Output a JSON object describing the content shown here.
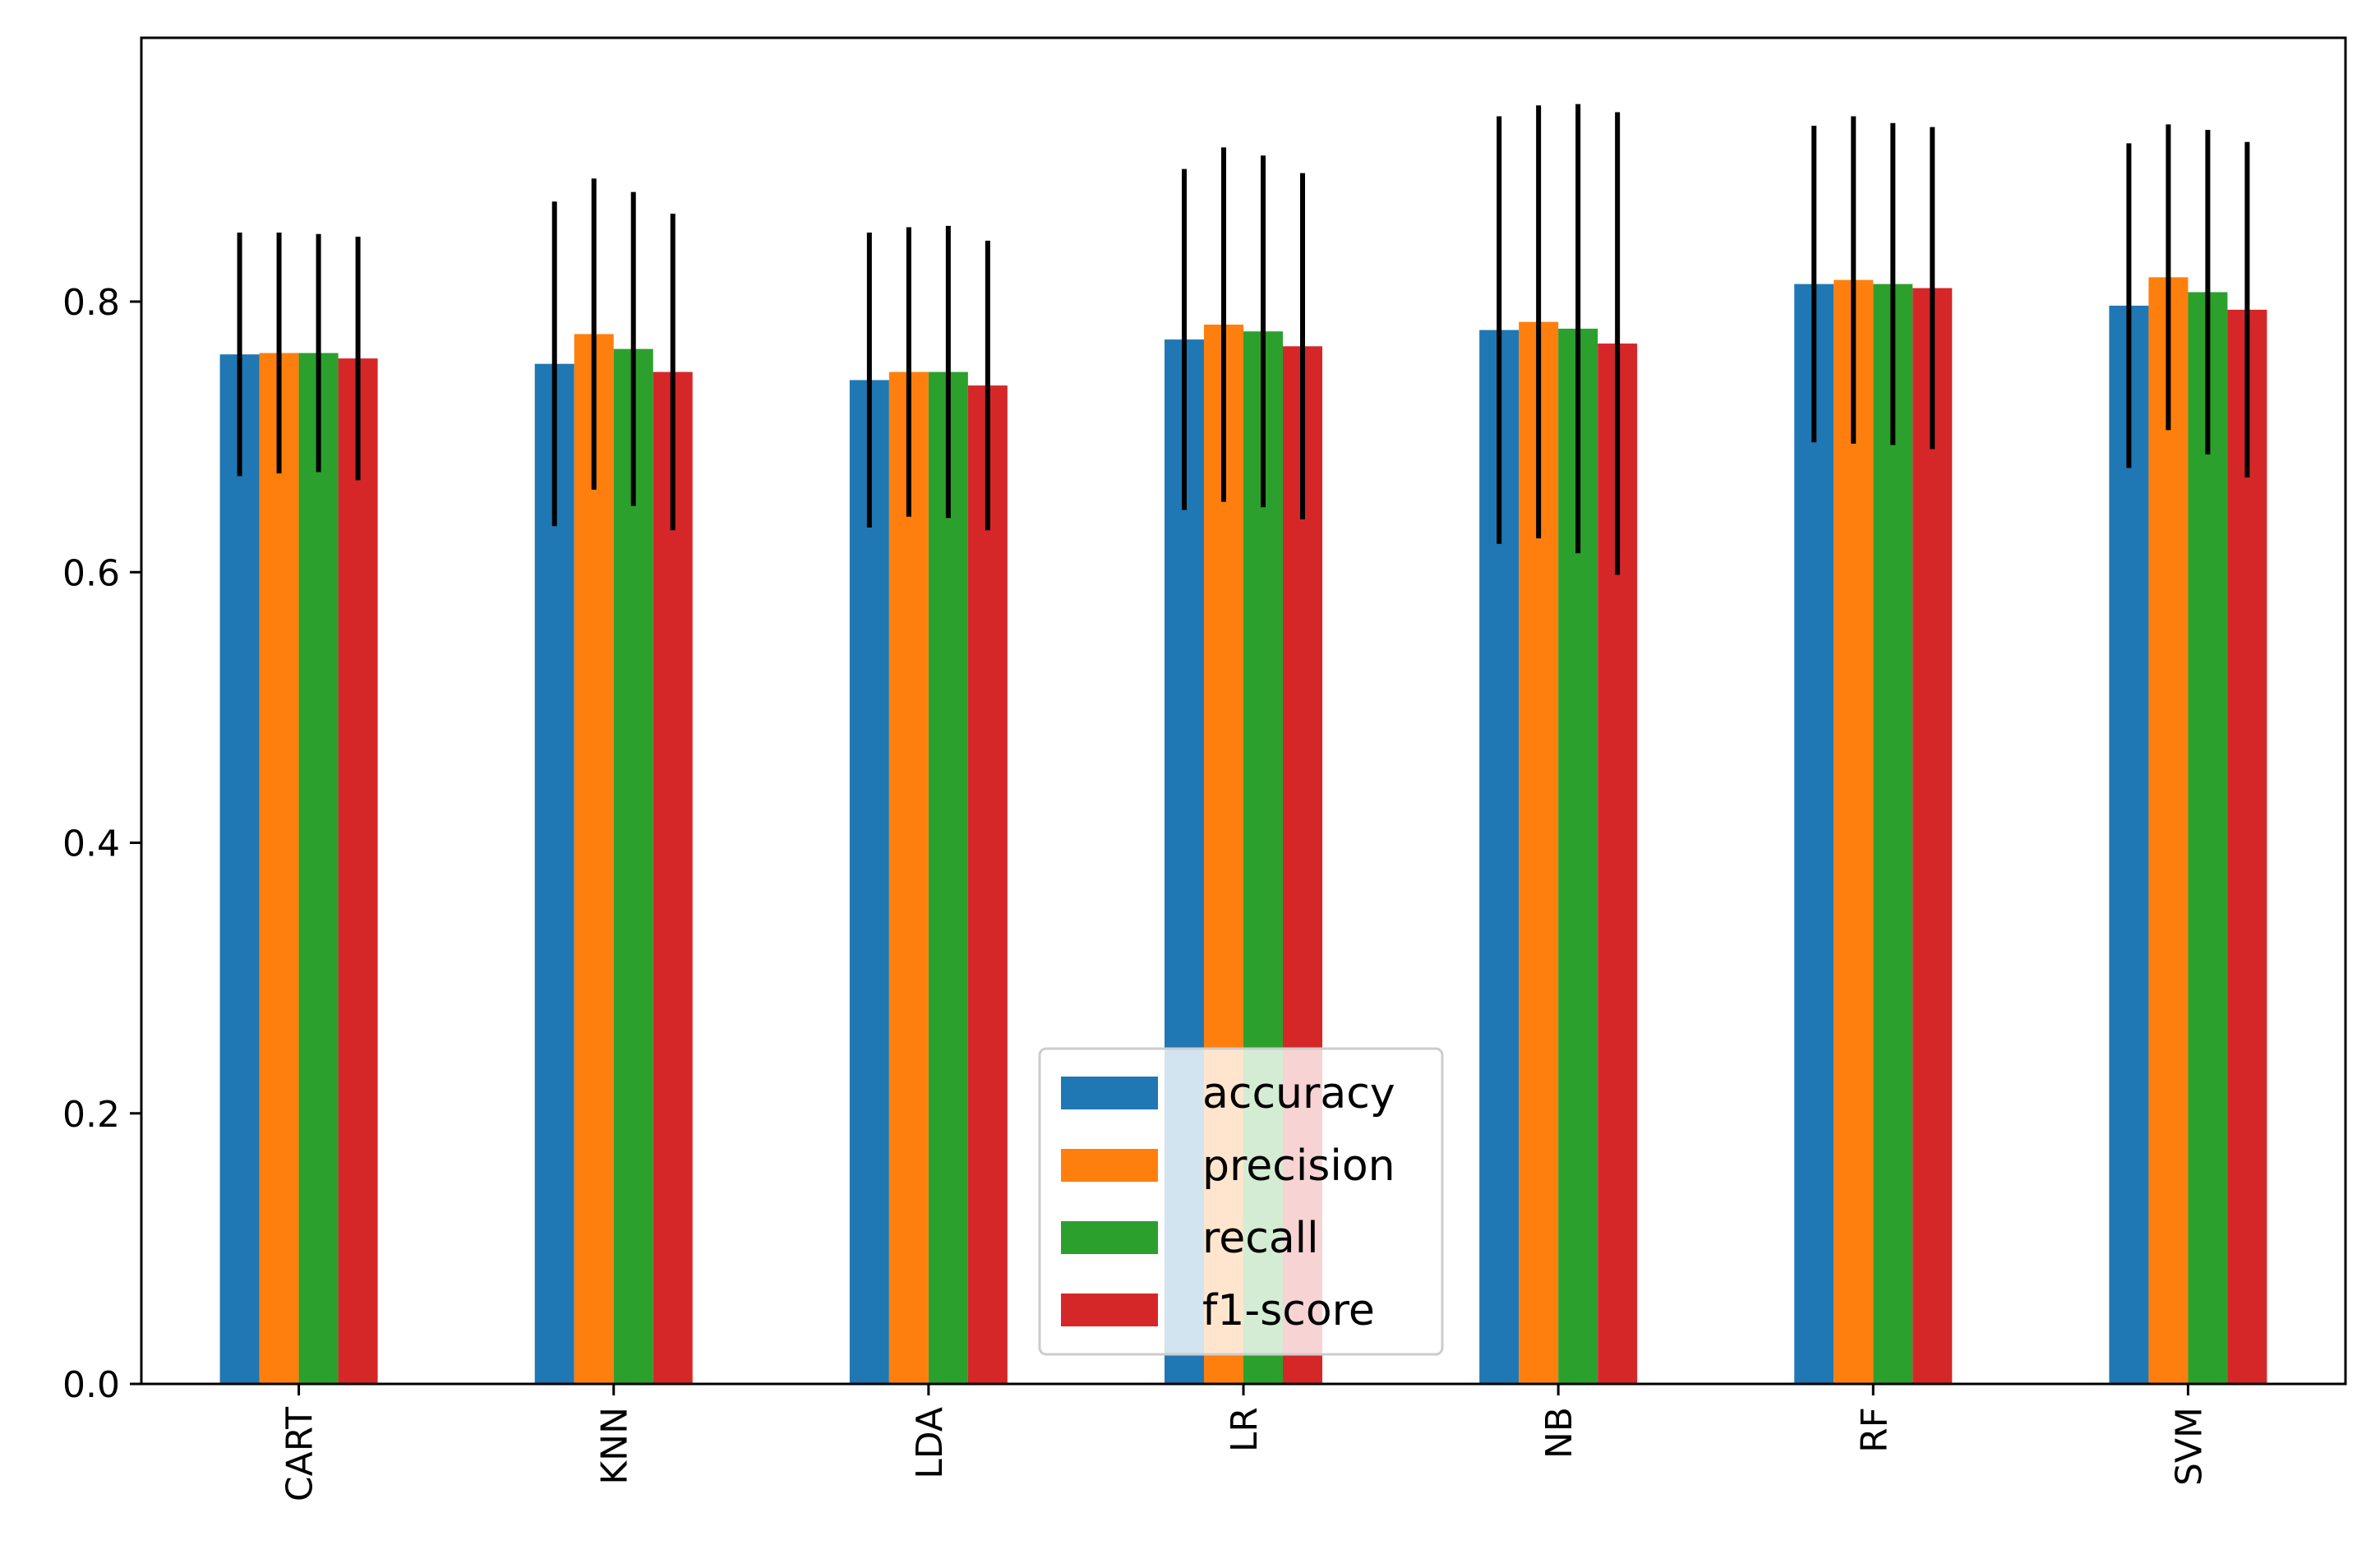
{
  "chart_data": {
    "type": "bar",
    "title": "",
    "xlabel": "",
    "ylabel": "",
    "ylim": [
      0,
      0.995
    ],
    "yticks": [
      "0.0",
      "0.2",
      "0.4",
      "0.6",
      "0.8"
    ],
    "ytick_values": [
      0.0,
      0.2,
      0.4,
      0.6,
      0.8
    ],
    "categories": [
      "CART",
      "KNN",
      "LDA",
      "LR",
      "NB",
      "RF",
      "SVM"
    ],
    "series": [
      {
        "name": "accuracy",
        "color": "#1f77b4",
        "values": [
          0.761,
          0.754,
          0.742,
          0.772,
          0.779,
          0.813,
          0.797
        ],
        "errors": [
          0.09,
          0.12,
          0.109,
          0.126,
          0.158,
          0.117,
          0.12
        ]
      },
      {
        "name": "precision",
        "color": "#ff7f0e",
        "values": [
          0.762,
          0.776,
          0.748,
          0.783,
          0.785,
          0.816,
          0.818
        ],
        "errors": [
          0.089,
          0.115,
          0.107,
          0.131,
          0.16,
          0.121,
          0.113
        ]
      },
      {
        "name": "recall",
        "color": "#2ca02c",
        "values": [
          0.762,
          0.765,
          0.748,
          0.778,
          0.78,
          0.813,
          0.807
        ],
        "errors": [
          0.088,
          0.116,
          0.108,
          0.13,
          0.166,
          0.119,
          0.12
        ]
      },
      {
        "name": "f1-score",
        "color": "#d62728",
        "values": [
          0.758,
          0.748,
          0.738,
          0.767,
          0.769,
          0.81,
          0.794
        ],
        "errors": [
          0.09,
          0.117,
          0.107,
          0.128,
          0.171,
          0.119,
          0.124
        ]
      }
    ],
    "legend_position": "lower-center"
  }
}
